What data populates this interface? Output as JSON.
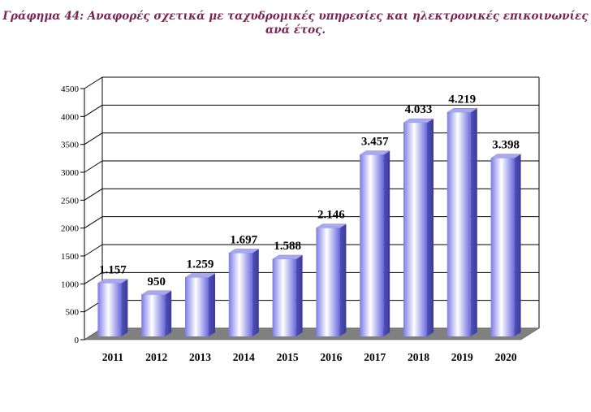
{
  "chart_data": {
    "type": "bar",
    "title_line1": "Γράφημα 44: Αναφορές σχετικά με ταχυδρομικές υπηρεσίες και ηλεκτρονικές επικοινωνίες",
    "title_line2": "ανά έτος.",
    "categories": [
      "2011",
      "2012",
      "2013",
      "2014",
      "2015",
      "2016",
      "2017",
      "2018",
      "2019",
      "2020"
    ],
    "values": [
      1157,
      950,
      1259,
      1697,
      1588,
      2146,
      3457,
      4033,
      4219,
      3398
    ],
    "data_labels": [
      "1.157",
      "950",
      "1.259",
      "1.697",
      "1.588",
      "2.146",
      "3.457",
      "4.033",
      "4.219",
      "3.398"
    ],
    "yticks": [
      "0",
      "500",
      "1000",
      "1500",
      "2000",
      "2500",
      "3000",
      "3500",
      "4000",
      "4500"
    ],
    "ylim": [
      0,
      4500
    ],
    "grid": true,
    "legend": "none",
    "colors": {
      "bar_front_light": "#ffffff",
      "bar_front_dark": "#6f6fe6",
      "bar_side": "#4a4ab0",
      "bar_top": "#a8a8f0",
      "floor": "#808080",
      "title": "#7a2454"
    }
  }
}
